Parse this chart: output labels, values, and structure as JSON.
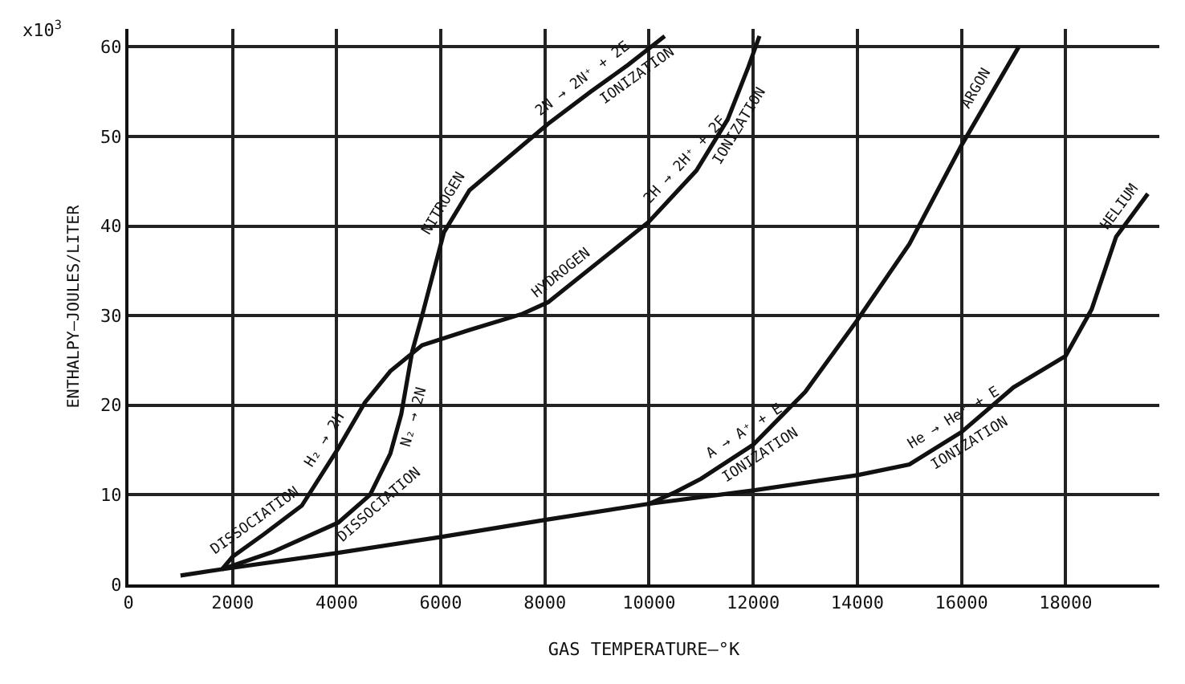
{
  "chart_data": {
    "type": "line",
    "xlabel": "GAS TEMPERATURE—°K",
    "ylabel": "ENTHALPY—JOULES/LITER",
    "xlim": [
      0,
      19800
    ],
    "ylim": [
      0,
      62
    ],
    "xticks": [
      0,
      2000,
      4000,
      6000,
      8000,
      10000,
      12000,
      14000,
      16000,
      18000
    ],
    "yticks": [
      0,
      10,
      20,
      30,
      40,
      50,
      60
    ],
    "grid": true,
    "legend": false,
    "marker": "none",
    "line_style": "solid",
    "series": [
      {
        "name": "HELIUM",
        "color": "#111111",
        "x": [
          1000,
          1800,
          4000,
          6000,
          8000,
          10000,
          12000,
          14000,
          15000,
          16000,
          17000,
          18000,
          18500,
          18970,
          19580
        ],
        "values": [
          1,
          1.7,
          3.5,
          5.3,
          7.2,
          9,
          10.5,
          12.2,
          13.4,
          17,
          22,
          25.5,
          30.7,
          38.8,
          43.6
        ]
      },
      {
        "name": "NITROGEN",
        "color": "#111111",
        "x": [
          1800,
          2760,
          4030,
          4640,
          5030,
          5240,
          5450,
          5640,
          6060,
          6550,
          7570,
          8060,
          8880,
          9600,
          10300
        ],
        "values": [
          1.7,
          3.6,
          6.9,
          10,
          14.6,
          19,
          26,
          30,
          39.3,
          44,
          49,
          51.4,
          55,
          58,
          61.2
        ]
      },
      {
        "name": "HYDROGEN",
        "color": "#111111",
        "x": [
          1800,
          2000,
          2600,
          3330,
          4030,
          4540,
          5030,
          5640,
          6550,
          7570,
          8060,
          8880,
          10000,
          10910,
          11510,
          11910,
          12120
        ],
        "values": [
          1.7,
          3.1,
          5.6,
          8.8,
          15.2,
          20.3,
          23.8,
          26.7,
          28.4,
          30.2,
          31.5,
          35.3,
          40.5,
          46.2,
          51.9,
          57.8,
          61.2
        ]
      },
      {
        "name": "ARGON",
        "color": "#111111",
        "x": [
          10000,
          10500,
          11000,
          12000,
          13000,
          14000,
          15000,
          16000,
          17100
        ],
        "values": [
          9,
          10.3,
          11.8,
          15.6,
          21.5,
          29.5,
          38,
          49,
          60
        ]
      }
    ],
    "annotations": [
      "x10$^{3}$",
      {
        "text": "DISSOCIATION",
        "x": 2600,
        "y": 5.6
      },
      {
        "text": "DISSOCIATION",
        "x": 4640,
        "y": 10
      },
      {
        "text": "H₂ → 2H",
        "x": 4030,
        "y": 15.2
      },
      {
        "text": "N₂ → 2N",
        "x": 5240,
        "y": 19
      },
      {
        "text": "2N → 2N⁺ + 2E",
        "x": 8880,
        "y": 55
      },
      {
        "text": "IONIZATION",
        "x": 9600,
        "y": 58
      },
      {
        "text": "2H → 2H⁺ + 2E",
        "x": 10910,
        "y": 46.2
      },
      {
        "text": "IONIZATION",
        "x": 11510,
        "y": 51.9
      },
      {
        "text": "A → A⁺ + E",
        "x": 12000,
        "y": 15.6
      },
      {
        "text": "IONIZATION",
        "x": 12000,
        "y": 15.6
      },
      {
        "text": "He → He⁺ + E",
        "x": 16000,
        "y": 17
      },
      {
        "text": "IONIZATION",
        "x": 16000,
        "y": 17
      }
    ]
  }
}
